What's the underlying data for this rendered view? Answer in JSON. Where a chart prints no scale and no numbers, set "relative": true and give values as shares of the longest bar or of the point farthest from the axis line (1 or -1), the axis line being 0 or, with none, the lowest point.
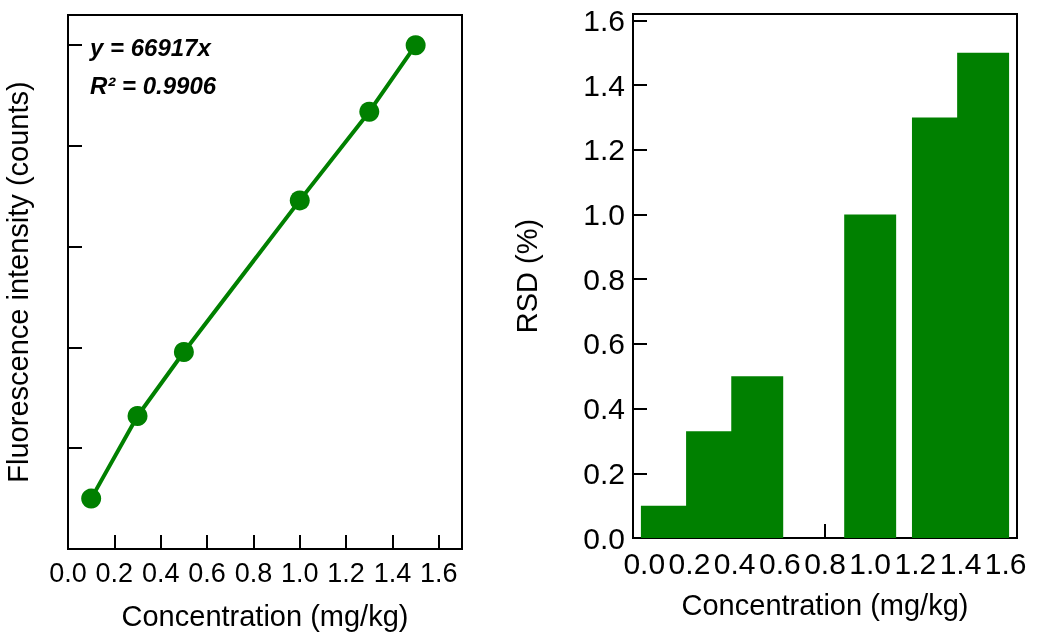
{
  "chart_data": [
    {
      "type": "line",
      "xlabel": "Concentration (mg/kg)",
      "ylabel": "Fluorescence intensity (counts)",
      "relative": true,
      "marker": "circle",
      "line_style": "solid",
      "x": [
        0.1,
        0.3,
        0.5,
        1.0,
        1.3,
        1.5
      ],
      "series": [
        {
          "color": "#008000",
          "values": [
            0.1,
            0.264,
            0.391,
            0.692,
            0.868,
            1.0
          ]
        }
      ],
      "xlim": [
        0,
        1.7
      ],
      "xticks": [
        {
          "value": 0,
          "label": "0.0"
        },
        {
          "value": 0.2,
          "label": "0.2"
        },
        {
          "value": 0.4,
          "label": "0.4"
        },
        {
          "value": 0.6,
          "label": "0.6"
        },
        {
          "value": 0.8,
          "label": "0.8"
        },
        {
          "value": 1.0,
          "label": "1.0"
        },
        {
          "value": 1.2,
          "label": "1.2"
        },
        {
          "value": 1.4,
          "label": "1.4"
        },
        {
          "value": 1.6,
          "label": "1.6"
        }
      ],
      "annotations": [
        "y = 66917x",
        "R² = 0.9906"
      ]
    },
    {
      "type": "bar",
      "xlabel": "Concentration (mg/kg)",
      "ylabel": "RSD (%)",
      "x": [
        0.1,
        0.3,
        0.5,
        1.0,
        1.3,
        1.5
      ],
      "series": [
        {
          "color": "#008000",
          "values": [
            0.1,
            0.33,
            0.5,
            1.0,
            1.3,
            1.5
          ]
        }
      ],
      "xlim": [
        -0.05,
        1.65
      ],
      "xticks": [
        {
          "value": 0,
          "label": "0.0"
        },
        {
          "value": 0.2,
          "label": "0.2"
        },
        {
          "value": 0.4,
          "label": "0.4"
        },
        {
          "value": 0.6,
          "label": "0.6"
        },
        {
          "value": 0.8,
          "label": "0.8"
        },
        {
          "value": 1.0,
          "label": "1.0"
        },
        {
          "value": 1.2,
          "label": "1.2"
        },
        {
          "value": 1.4,
          "label": "1.4"
        },
        {
          "value": 1.6,
          "label": "1.6"
        }
      ],
      "ylim": [
        0,
        1.62
      ],
      "yticks": [
        {
          "value": 0,
          "label": "0.0"
        },
        {
          "value": 0.2,
          "label": "0.2"
        },
        {
          "value": 0.4,
          "label": "0.4"
        },
        {
          "value": 0.6,
          "label": "0.6"
        },
        {
          "value": 0.8,
          "label": "0.8"
        },
        {
          "value": 1.0,
          "label": "1.0"
        },
        {
          "value": 1.2,
          "label": "1.2"
        },
        {
          "value": 1.4,
          "label": "1.4"
        },
        {
          "value": 1.6,
          "label": "1.6"
        }
      ]
    }
  ]
}
